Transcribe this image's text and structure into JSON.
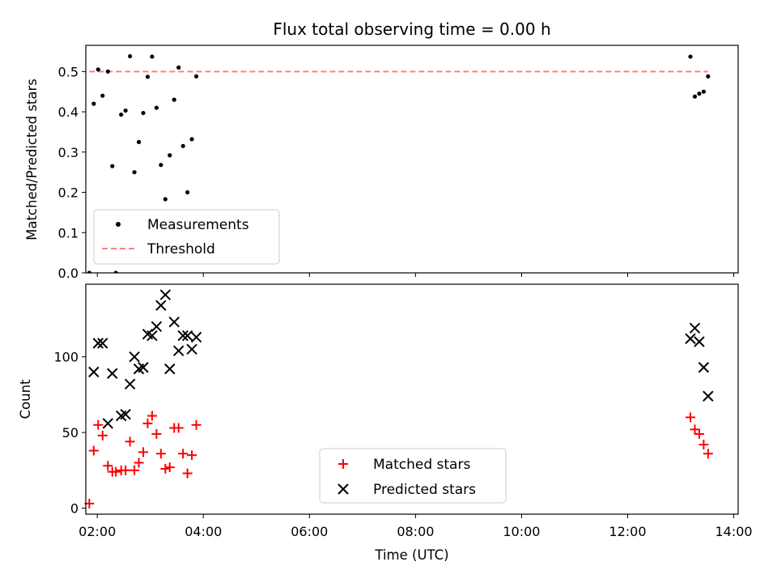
{
  "chart_data": [
    {
      "id": "ratio",
      "type": "scatter",
      "title": "Flux total observing time = 0.00 h",
      "xlabel": "",
      "ylabel": "Matched/Predicted stars",
      "xlim": [
        "01:47",
        "14:05"
      ],
      "ylim": [
        0,
        0.565
      ],
      "yticks": [
        0,
        0.1,
        0.2,
        0.3,
        0.4,
        0.5
      ],
      "ytick_labels": [
        "0.0",
        "0.1",
        "0.2",
        "0.3",
        "0.4",
        "0.5"
      ],
      "legend": "bottom-left",
      "series": [
        {
          "name": "Measurements",
          "kind": "scatter",
          "color": "#000000",
          "points": [
            {
              "x": "01:51",
              "y": 0.0
            },
            {
              "x": "01:56",
              "y": 0.42
            },
            {
              "x": "02:01",
              "y": 0.505
            },
            {
              "x": "02:06",
              "y": 0.44
            },
            {
              "x": "02:12",
              "y": 0.5
            },
            {
              "x": "02:17",
              "y": 0.265
            },
            {
              "x": "02:21",
              "y": 0.0
            },
            {
              "x": "02:27",
              "y": 0.393
            },
            {
              "x": "02:32",
              "y": 0.403
            },
            {
              "x": "02:37",
              "y": 0.538
            },
            {
              "x": "02:42",
              "y": 0.25
            },
            {
              "x": "02:47",
              "y": 0.325
            },
            {
              "x": "02:52",
              "y": 0.397
            },
            {
              "x": "02:57",
              "y": 0.487
            },
            {
              "x": "03:02",
              "y": 0.537
            },
            {
              "x": "03:07",
              "y": 0.41
            },
            {
              "x": "03:12",
              "y": 0.268
            },
            {
              "x": "03:17",
              "y": 0.183
            },
            {
              "x": "03:22",
              "y": 0.292
            },
            {
              "x": "03:27",
              "y": 0.43
            },
            {
              "x": "03:32",
              "y": 0.51
            },
            {
              "x": "03:37",
              "y": 0.315
            },
            {
              "x": "03:42",
              "y": 0.2
            },
            {
              "x": "03:47",
              "y": 0.332
            },
            {
              "x": "03:52",
              "y": 0.488
            },
            {
              "x": "13:11",
              "y": 0.537
            },
            {
              "x": "13:16",
              "y": 0.438
            },
            {
              "x": "13:21",
              "y": 0.445
            },
            {
              "x": "13:26",
              "y": 0.45
            },
            {
              "x": "13:31",
              "y": 0.488
            }
          ]
        },
        {
          "name": "Threshold",
          "kind": "line",
          "color": "#ff0000",
          "alpha": 0.5,
          "points": [
            {
              "x": "01:51",
              "y": 0.5
            },
            {
              "x": "13:31",
              "y": 0.5
            }
          ]
        }
      ]
    },
    {
      "id": "count",
      "type": "scatter",
      "title": "",
      "xlabel": "Time (UTC)",
      "ylabel": "Count",
      "xlim": [
        "01:47",
        "14:05"
      ],
      "xticks": [
        "02:00",
        "04:00",
        "06:00",
        "08:00",
        "10:00",
        "12:00",
        "14:00"
      ],
      "ylim": [
        -4,
        148
      ],
      "yticks": [
        0,
        50,
        100
      ],
      "ytick_labels": [
        "0",
        "50",
        "100"
      ],
      "legend": "bottom-center",
      "series": [
        {
          "name": "Matched stars",
          "kind": "scatter",
          "marker": "plus",
          "color": "#ff0000",
          "points": [
            {
              "x": "01:51",
              "y": 3
            },
            {
              "x": "01:56",
              "y": 38
            },
            {
              "x": "02:01",
              "y": 55
            },
            {
              "x": "02:06",
              "y": 48
            },
            {
              "x": "02:12",
              "y": 28
            },
            {
              "x": "02:17",
              "y": 24
            },
            {
              "x": "02:21",
              "y": 24
            },
            {
              "x": "02:27",
              "y": 25
            },
            {
              "x": "02:32",
              "y": 25
            },
            {
              "x": "02:37",
              "y": 44
            },
            {
              "x": "02:42",
              "y": 25
            },
            {
              "x": "02:47",
              "y": 30
            },
            {
              "x": "02:52",
              "y": 37
            },
            {
              "x": "02:57",
              "y": 56
            },
            {
              "x": "03:02",
              "y": 61
            },
            {
              "x": "03:07",
              "y": 49
            },
            {
              "x": "03:12",
              "y": 36
            },
            {
              "x": "03:17",
              "y": 26
            },
            {
              "x": "03:22",
              "y": 27
            },
            {
              "x": "03:27",
              "y": 53
            },
            {
              "x": "03:32",
              "y": 53
            },
            {
              "x": "03:37",
              "y": 36
            },
            {
              "x": "03:42",
              "y": 23
            },
            {
              "x": "03:47",
              "y": 35
            },
            {
              "x": "03:52",
              "y": 55
            },
            {
              "x": "13:11",
              "y": 60
            },
            {
              "x": "13:16",
              "y": 52
            },
            {
              "x": "13:21",
              "y": 49
            },
            {
              "x": "13:26",
              "y": 42
            },
            {
              "x": "13:31",
              "y": 36
            }
          ]
        },
        {
          "name": "Predicted stars",
          "kind": "scatter",
          "marker": "x",
          "color": "#000000",
          "points": [
            {
              "x": "01:56",
              "y": 90
            },
            {
              "x": "02:01",
              "y": 109
            },
            {
              "x": "02:06",
              "y": 109
            },
            {
              "x": "02:12",
              "y": 56
            },
            {
              "x": "02:17",
              "y": 89
            },
            {
              "x": "02:27",
              "y": 61
            },
            {
              "x": "02:32",
              "y": 62
            },
            {
              "x": "02:37",
              "y": 82
            },
            {
              "x": "02:42",
              "y": 100
            },
            {
              "x": "02:47",
              "y": 92
            },
            {
              "x": "02:52",
              "y": 93
            },
            {
              "x": "02:57",
              "y": 115
            },
            {
              "x": "03:02",
              "y": 114
            },
            {
              "x": "03:07",
              "y": 120
            },
            {
              "x": "03:12",
              "y": 134
            },
            {
              "x": "03:17",
              "y": 141
            },
            {
              "x": "03:22",
              "y": 92
            },
            {
              "x": "03:27",
              "y": 123
            },
            {
              "x": "03:32",
              "y": 104
            },
            {
              "x": "03:37",
              "y": 114
            },
            {
              "x": "03:42",
              "y": 114
            },
            {
              "x": "03:47",
              "y": 105
            },
            {
              "x": "03:52",
              "y": 113
            },
            {
              "x": "13:11",
              "y": 112
            },
            {
              "x": "13:16",
              "y": 119
            },
            {
              "x": "13:21",
              "y": 110
            },
            {
              "x": "13:26",
              "y": 93
            },
            {
              "x": "13:31",
              "y": 74
            }
          ]
        }
      ]
    }
  ]
}
